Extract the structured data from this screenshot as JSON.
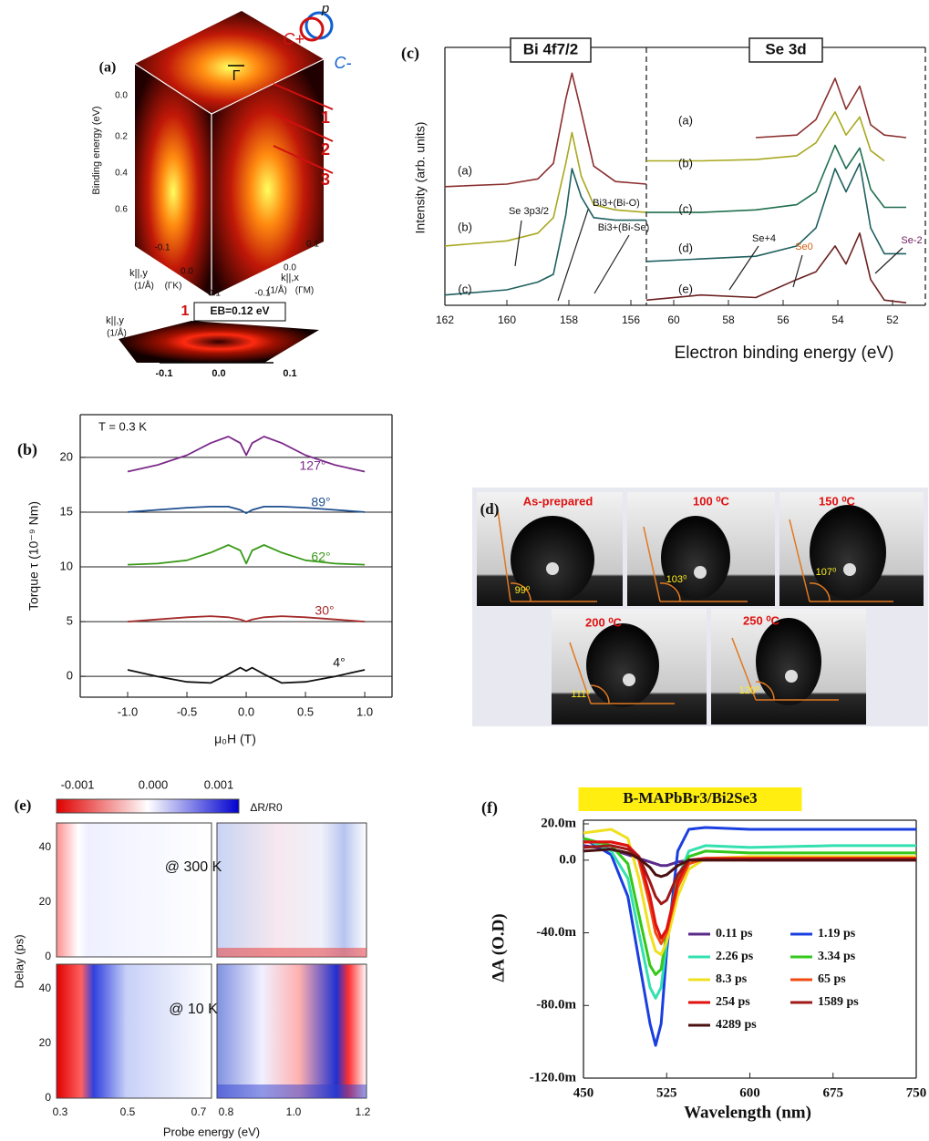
{
  "chart_data": [
    {
      "type": "line",
      "panel": "(b)",
      "annotation": "T = 0.3 K",
      "xlabel": "μ₀H (T)",
      "ylabel": "Torque τ (10⁻⁹ Nm)",
      "xlim": [
        -1.4,
        1.23
      ],
      "ylim": [
        -1.9,
        23.9
      ],
      "xticks": [
        {
          "value": -1,
          "label": "-1.0"
        },
        {
          "value": -0.5,
          "label": "-0.5"
        },
        {
          "value": 0,
          "label": "0.0"
        },
        {
          "value": 0.5,
          "label": "0.5"
        },
        {
          "value": 1,
          "label": "1.0"
        }
      ],
      "yticks": [
        0,
        5,
        10,
        15,
        20
      ],
      "grid": true,
      "x": [
        -1,
        -0.75,
        -0.5,
        -0.3,
        -0.15,
        -0.05,
        0,
        0.05,
        0.15,
        0.3,
        0.5,
        0.75,
        1
      ],
      "series": [
        {
          "name": "4°",
          "color": "#111111",
          "values": [
            0.6,
            0,
            -0.5,
            -0.6,
            0.2,
            0.8,
            0.5,
            0.8,
            0.2,
            -0.6,
            -0.5,
            0,
            0.6
          ]
        },
        {
          "name": "30°",
          "color": "#a52a2a",
          "values": [
            5,
            5.2,
            5.4,
            5.5,
            5.4,
            5.2,
            5,
            5.2,
            5.4,
            5.5,
            5.4,
            5.2,
            5
          ]
        },
        {
          "name": "62°",
          "color": "#3a9a1a",
          "values": [
            10.2,
            10.3,
            10.6,
            11.3,
            12,
            11.5,
            10.3,
            11.5,
            12,
            11.3,
            10.6,
            10.3,
            10.2
          ]
        },
        {
          "name": "89°",
          "color": "#1f4f8f",
          "values": [
            15,
            15.2,
            15.4,
            15.5,
            15.5,
            15.2,
            14.9,
            15.2,
            15.5,
            15.5,
            15.4,
            15.2,
            15
          ]
        },
        {
          "name": "127°",
          "color": "#7b2a8a",
          "values": [
            18.7,
            19.3,
            20.2,
            21.3,
            21.9,
            21.3,
            20.2,
            21.3,
            21.9,
            21.3,
            20.2,
            19.3,
            18.7
          ]
        }
      ]
    },
    {
      "type": "line",
      "panel": "(c)",
      "title": "Bi 4f7/2",
      "ylabel": "Intensity (arb. units)",
      "xlim": [
        162,
        155.5
      ],
      "ylim": [
        0,
        10
      ],
      "xticks": [
        162,
        160,
        158,
        156
      ],
      "grid": false,
      "x": [
        162,
        160,
        159,
        158.5,
        158.1,
        157.9,
        157.6,
        157.2,
        156.5,
        155.5
      ],
      "annotations": [
        "Se 3p3/2",
        "Bi3+(Bi-O)",
        "Bi3+(Bi-Se)"
      ],
      "series": [
        {
          "name": "(a)",
          "color": "#8b2e2e",
          "values": [
            4.6,
            4.7,
            4.9,
            5.5,
            8,
            9,
            7.5,
            5.4,
            4.8,
            4.7
          ]
        },
        {
          "name": "(b)",
          "color": "#a8a820",
          "values": [
            2.3,
            2.5,
            2.8,
            3.4,
            5.5,
            6.7,
            5,
            3.9,
            3.7,
            3.6
          ]
        },
        {
          "name": "(c)",
          "color": "#1f5f5f",
          "values": [
            0.4,
            0.6,
            0.9,
            1.2,
            3.5,
            5.3,
            4.2,
            3.4,
            3.3,
            3.3
          ]
        }
      ]
    },
    {
      "type": "line",
      "title": "Se 3d",
      "xlabel": "Electron binding energy (eV)",
      "xlim": [
        61,
        50.8
      ],
      "ylim": [
        0,
        10
      ],
      "xticks": [
        60,
        58,
        56,
        54,
        52
      ],
      "grid": false,
      "x": [
        61,
        59,
        57,
        55.5,
        54.8,
        54.1,
        53.7,
        53.2,
        52.8,
        52.3,
        51.5
      ],
      "annotations": [
        "Se+4",
        "Se0",
        "Se-2"
      ],
      "series": [
        {
          "name": "(a)",
          "color": "#8b2e2e",
          "values": [
            null,
            null,
            6.5,
            6.6,
            7.2,
            8.8,
            7.6,
            8.5,
            7,
            6.6,
            6.5
          ]
        },
        {
          "name": "(b)",
          "color": "#a8a820",
          "values": [
            5.6,
            5.6,
            5.65,
            5.8,
            6.3,
            7.5,
            6.6,
            7.3,
            6,
            5.6,
            null
          ]
        },
        {
          "name": "(c)",
          "color": "#1f6f4f",
          "values": [
            3.6,
            3.6,
            3.7,
            3.9,
            4.4,
            6.2,
            5.3,
            6.1,
            4.5,
            3.8,
            3.8
          ]
        },
        {
          "name": "(d)",
          "color": "#1f5f5f",
          "values": [
            1.7,
            1.8,
            1.9,
            2.3,
            3,
            5.3,
            4.4,
            5.5,
            3,
            2,
            2
          ]
        },
        {
          "name": "(e)",
          "color": "#6b2020",
          "values": [
            0.2,
            0.4,
            0.3,
            1,
            1.3,
            2.3,
            1.6,
            2.8,
            1,
            0.2,
            0.1
          ]
        }
      ]
    },
    {
      "type": "line",
      "panel": "(f)",
      "title": "B-MAPbBr3/Bi2Se3",
      "xlabel": "Wavelength (nm)",
      "ylabel": "ΔA (O.D)",
      "xlim": [
        450,
        750
      ],
      "ylim": [
        -0.12,
        0.022
      ],
      "xticks": [
        450,
        525,
        600,
        675,
        750
      ],
      "yticks": [
        {
          "value": 0.02,
          "label": "20.0m"
        },
        {
          "value": 0,
          "label": "0.0"
        },
        {
          "value": -0.04,
          "label": "-40.0m"
        },
        {
          "value": -0.08,
          "label": "-80.0m"
        },
        {
          "value": -0.12,
          "label": "-120.0m"
        }
      ],
      "grid": false,
      "legend": "lower right",
      "x": [
        450,
        475,
        490,
        500,
        510,
        515,
        520,
        525,
        535,
        545,
        560,
        600,
        675,
        750
      ],
      "series": [
        {
          "name": "0.11 ps",
          "color": "#5b2a8a",
          "values": [
            0.008,
            0.006,
            0.003,
            0.001,
            -0.001,
            -0.002,
            -0.003,
            -0.003,
            -0.001,
            0,
            0.001,
            0,
            0,
            0
          ]
        },
        {
          "name": "1.19 ps",
          "color": "#1a3fe0",
          "values": [
            0.012,
            0.003,
            -0.02,
            -0.055,
            -0.09,
            -0.102,
            -0.09,
            -0.05,
            0.005,
            0.017,
            0.018,
            0.017,
            0.017,
            0.017
          ]
        },
        {
          "name": "2.26 ps",
          "color": "#33e0b0",
          "values": [
            0.012,
            0.005,
            -0.01,
            -0.04,
            -0.07,
            -0.076,
            -0.07,
            -0.045,
            -0.01,
            0.005,
            0.008,
            0.007,
            0.008,
            0.008
          ]
        },
        {
          "name": "3.34 ps",
          "color": "#33c81a",
          "values": [
            0.012,
            0.008,
            -0.002,
            -0.03,
            -0.058,
            -0.063,
            -0.06,
            -0.04,
            -0.01,
            0.002,
            0.005,
            0.004,
            0.004,
            0.004
          ]
        },
        {
          "name": "8.3 ps",
          "color": "#f0e020",
          "values": [
            0.015,
            0.017,
            0.012,
            -0.01,
            -0.04,
            -0.05,
            -0.052,
            -0.045,
            -0.02,
            -0.005,
            0.001,
            0.002,
            0.002,
            0.002
          ]
        },
        {
          "name": "65 ps",
          "color": "#f04a10",
          "values": [
            0.01,
            0.01,
            0.008,
            0,
            -0.025,
            -0.04,
            -0.046,
            -0.04,
            -0.015,
            -0.002,
            0.001,
            0.001,
            0.001,
            0.001
          ]
        },
        {
          "name": "254 ps",
          "color": "#e01010",
          "values": [
            0.01,
            0.01,
            0.008,
            0.002,
            -0.02,
            -0.035,
            -0.043,
            -0.038,
            -0.012,
            0,
            0.001,
            0.001,
            0.001,
            0.001
          ]
        },
        {
          "name": "1589 ps",
          "color": "#a01818",
          "values": [
            0.007,
            0.008,
            0.006,
            0.002,
            -0.012,
            -0.02,
            -0.024,
            -0.022,
            -0.008,
            0,
            0,
            0,
            0,
            0
          ]
        },
        {
          "name": "4289 ps",
          "color": "#4a1010",
          "values": [
            0.005,
            0.006,
            0.004,
            0.001,
            -0.004,
            -0.008,
            -0.009,
            -0.008,
            -0.003,
            0,
            0,
            0,
            0,
            0
          ]
        }
      ]
    }
  ],
  "figures": {
    "a": {
      "labels": [
        "(a)",
        "Binding energy (eV)",
        "0.0",
        "0.2",
        "0.4",
        "0.6",
        "1",
        "2",
        "3",
        "Γ",
        "p",
        "C+",
        "C-",
        "-0.1",
        "0.0",
        "0.1",
        "0.1",
        "0.0",
        "-0.1",
        "k||,y",
        "(1/Å)",
        "(ΓK)",
        "k||,x",
        "(1/Å)",
        "(ΓM)",
        "1",
        "EB=0.12 eV",
        "k||,y",
        "(1/Å)",
        "-0.1",
        "0.0",
        "0.1"
      ]
    },
    "d": {
      "labels": [
        "(d)",
        "As-prepared",
        "99⁰",
        "100 ⁰C",
        "103⁰",
        "150 ⁰C",
        "107⁰",
        "200 ⁰C",
        "111⁰",
        "250 ⁰C",
        "120⁰"
      ]
    },
    "e": {
      "labels": [
        "(e)",
        "-0.001",
        "0.000",
        "0.001",
        "ΔR/R0",
        "@ 300 K",
        "@ 10 K",
        "0",
        "20",
        "40",
        "0",
        "20",
        "40",
        "0.3",
        "0.5",
        "0.7",
        "0.8",
        "1.0",
        "1.2",
        "Delay (ps)",
        "Probe energy (eV)"
      ]
    }
  }
}
